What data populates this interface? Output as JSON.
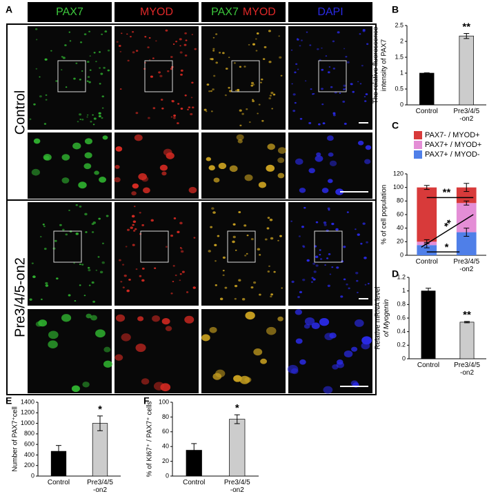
{
  "panel_a": {
    "label": "A",
    "headers": [
      [
        "PAX7"
      ],
      [
        "MYOD"
      ],
      [
        "PAX7",
        "MYOD"
      ],
      [
        "DAPI"
      ]
    ],
    "channel_colors": {
      "PAX7": "#3cc83c",
      "MYOD": "#e02828",
      "DAPI": "#2a2ae6"
    },
    "rows": [
      "Control",
      "Pre3/4/5-on2"
    ]
  },
  "chart_data": [
    {
      "type": "bar",
      "panel": "B",
      "ylabel": [
        "The relative fluorescence",
        "intensity of PAX7"
      ],
      "categories": [
        "Control",
        "Pre3/4/5\n-on2"
      ],
      "values": [
        1,
        2.17
      ],
      "errors": [
        0.01,
        0.08
      ],
      "colors": [
        "#000000",
        "#cccccc"
      ],
      "ylim": [
        0,
        2.5
      ],
      "yticks": [
        0,
        0.5,
        1,
        1.5,
        2,
        2.5
      ],
      "annotations": [
        "**"
      ]
    },
    {
      "type": "stacked_bar",
      "panel": "C",
      "ylabel": [
        "% of cell population"
      ],
      "categories": [
        "Control",
        "Pre3/4/5\n-on2"
      ],
      "series": [
        {
          "name": "PAX7+ / MYOD-",
          "color": "#4f7fe8",
          "values": [
            15,
            34
          ],
          "errors": [
            4,
            6
          ]
        },
        {
          "name": "PAX7+ / MYOD+",
          "color": "#e48ed6",
          "values": [
            5,
            43
          ],
          "errors": [
            3,
            3
          ]
        },
        {
          "name": "PAX7- / MYOD+",
          "color": "#d83a3a",
          "values": [
            80,
            23
          ],
          "errors": [
            3,
            6
          ]
        }
      ],
      "ylim": [
        0,
        120
      ],
      "yticks": [
        0,
        20,
        40,
        60,
        80,
        100,
        120
      ],
      "annotations": [
        "**",
        "**",
        "*"
      ]
    },
    {
      "type": "bar",
      "panel": "D",
      "ylabel": [
        "Relative mRNA level",
        "of Myogenin"
      ],
      "categories": [
        "Control",
        "Pre3/4/5\n-on2"
      ],
      "values": [
        1,
        0.54
      ],
      "errors": [
        0.04,
        0.01
      ],
      "colors": [
        "#000000",
        "#cccccc"
      ],
      "ylim": [
        0,
        1.2
      ],
      "yticks": [
        0,
        0.2,
        0.4,
        0.6,
        0.8,
        1,
        1.2
      ],
      "annotations": [
        "**"
      ]
    },
    {
      "type": "bar",
      "panel": "E",
      "ylabel": [
        "Number of PAX7⁺cell"
      ],
      "categories": [
        "Control",
        "Pre3/4/5\n-on2"
      ],
      "values": [
        470,
        1000
      ],
      "errors": [
        110,
        140
      ],
      "colors": [
        "#000000",
        "#cccccc"
      ],
      "ylim": [
        0,
        1400
      ],
      "yticks": [
        0,
        200,
        400,
        600,
        800,
        1000,
        1200,
        1400
      ],
      "annotations": [
        "*"
      ]
    },
    {
      "type": "bar",
      "panel": "F",
      "ylabel": [
        "% of KI67⁺ / PAX7⁺ cells"
      ],
      "categories": [
        "Control",
        "Pre3/4/5\n-on2"
      ],
      "values": [
        35,
        77
      ],
      "errors": [
        9,
        6
      ],
      "colors": [
        "#000000",
        "#cccccc"
      ],
      "ylim": [
        0,
        100
      ],
      "yticks": [
        0,
        20,
        40,
        60,
        80,
        100
      ],
      "annotations": [
        "*"
      ]
    }
  ]
}
